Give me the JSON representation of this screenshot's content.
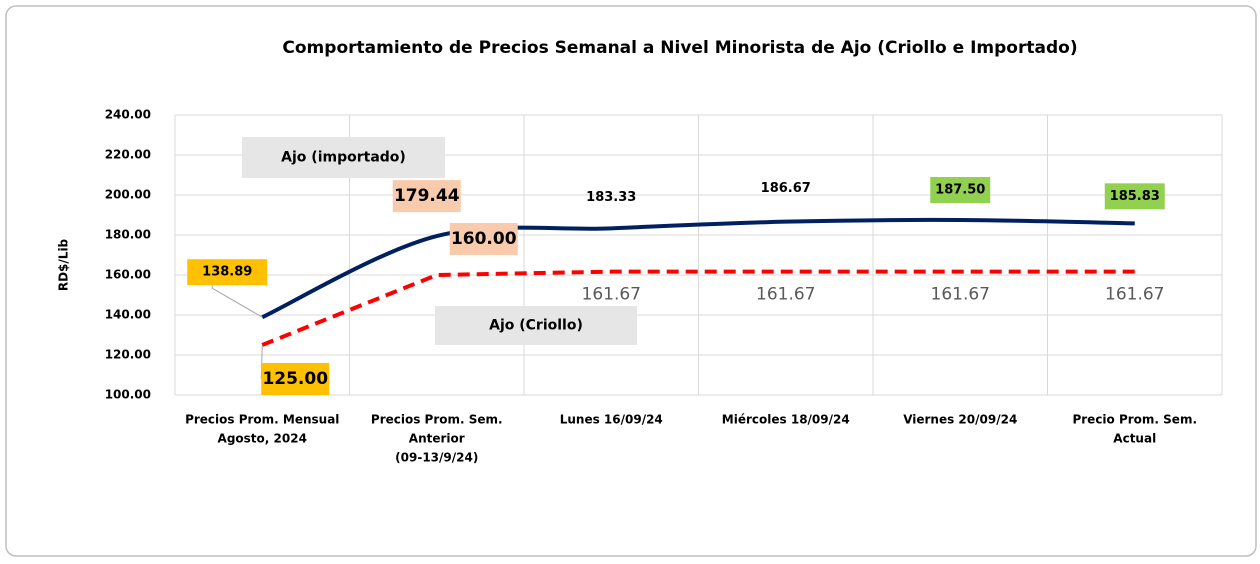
{
  "chart_data": {
    "type": "line",
    "title": "Comportamiento de Precios Semanal a Nivel Minorista de Ajo (Criollo e Importado)",
    "y_label": "RD$/Lib",
    "categories": [
      [
        "Precios Prom. Mensual",
        "Agosto, 2024"
      ],
      [
        "Precios Prom. Sem.",
        "Anterior",
        "(09-13/9/24)"
      ],
      [
        "Lunes  16/09/24"
      ],
      [
        "Miércoles 18/09/24"
      ],
      [
        "Viernes 20/09/24"
      ],
      [
        "Precio Prom. Sem.",
        "Actual"
      ]
    ],
    "series": [
      {
        "name": "Ajo (importado)",
        "color": "#002060",
        "line_style": "solid",
        "smooth": true,
        "values": [
          138.89,
          179.44,
          183.33,
          186.67,
          187.5,
          185.83
        ],
        "value_labels": [
          "138.89",
          "179.44",
          "183.33",
          "186.67",
          "187.50",
          "185.83"
        ],
        "label_backgrounds": [
          "#ffc000",
          "#f8cbad",
          null,
          null,
          "#92d050",
          "#92d050"
        ]
      },
      {
        "name": "Ajo (Criollo)",
        "color": "#ff0000",
        "line_style": "dashed",
        "smooth": false,
        "values": [
          125,
          160,
          161.67,
          161.67,
          161.67,
          161.67
        ],
        "value_labels": [
          "125.00",
          "160.00",
          "161.67",
          "161.67",
          "161.67",
          "161.67"
        ],
        "label_backgrounds": [
          "#ffc000",
          "#f8cbad",
          null,
          null,
          null,
          null
        ]
      }
    ],
    "ylim": [
      100,
      240
    ],
    "yticks": [
      {
        "value": 100,
        "label": "100.00"
      },
      {
        "value": 120,
        "label": "120.00"
      },
      {
        "value": 140,
        "label": "140.00"
      },
      {
        "value": 160,
        "label": "160.00"
      },
      {
        "value": 180,
        "label": "180.00"
      },
      {
        "value": 200,
        "label": "200.00"
      },
      {
        "value": 220,
        "label": "220.00"
      },
      {
        "value": 240,
        "label": "240.00"
      }
    ],
    "grid": true
  }
}
